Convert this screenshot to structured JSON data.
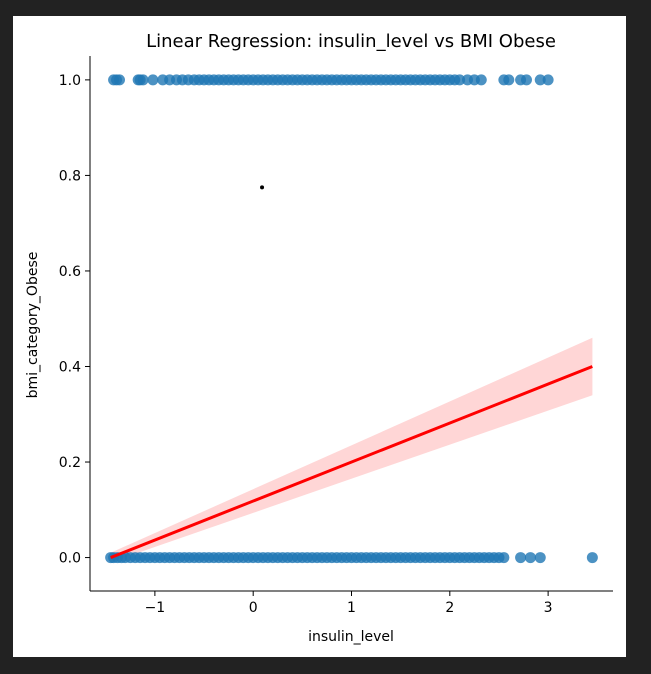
{
  "chart_data": {
    "type": "scatter",
    "title": "Linear Regression: insulin_level vs BMI Obese",
    "xlabel": "insulin_level",
    "ylabel": "bmi_category_Obese",
    "xlim": [
      -1.66,
      3.66
    ],
    "ylim": [
      -0.07,
      1.05
    ],
    "xticks": [
      -1,
      0,
      1,
      2,
      3
    ],
    "xtick_labels": [
      "−1",
      "0",
      "1",
      "2",
      "3"
    ],
    "yticks": [
      0.0,
      0.2,
      0.4,
      0.6,
      0.8,
      1.0
    ],
    "ytick_labels": [
      "0.0",
      "0.2",
      "0.4",
      "0.6",
      "0.8",
      "1.0"
    ],
    "grid": false,
    "point_color": "#1f77b4",
    "line_color": "#ff0000",
    "ci_color": "#ffcccc",
    "series": [
      {
        "values_at_y1": [
          -1.42,
          -1.39,
          -1.36,
          -1.17,
          -1.15,
          -1.12,
          -1.02,
          -0.92,
          -0.85,
          -0.78,
          -0.72,
          -0.66,
          -0.6,
          -0.55,
          -0.5,
          -0.45,
          -0.4,
          -0.35,
          -0.3,
          -0.25,
          -0.2,
          -0.15,
          -0.1,
          -0.05,
          0.0,
          0.05,
          0.1,
          0.15,
          0.2,
          0.25,
          0.3,
          0.35,
          0.4,
          0.45,
          0.5,
          0.55,
          0.6,
          0.65,
          0.7,
          0.75,
          0.8,
          0.85,
          0.9,
          0.95,
          1.0,
          1.05,
          1.1,
          1.15,
          1.2,
          1.25,
          1.3,
          1.35,
          1.4,
          1.45,
          1.5,
          1.55,
          1.6,
          1.65,
          1.7,
          1.75,
          1.8,
          1.85,
          1.9,
          1.95,
          2.0,
          2.05,
          2.1,
          2.18,
          2.25,
          2.32,
          2.55,
          2.6,
          2.72,
          2.78,
          2.92,
          3.0
        ],
        "values_at_y0": [
          -1.45,
          -1.42,
          -1.38,
          -1.34,
          -1.3,
          -1.25,
          -1.2,
          -1.15,
          -1.1,
          -1.05,
          -1.0,
          -0.95,
          -0.9,
          -0.85,
          -0.8,
          -0.75,
          -0.7,
          -0.65,
          -0.6,
          -0.55,
          -0.5,
          -0.45,
          -0.4,
          -0.35,
          -0.3,
          -0.25,
          -0.2,
          -0.15,
          -0.1,
          -0.05,
          0.0,
          0.05,
          0.1,
          0.15,
          0.2,
          0.25,
          0.3,
          0.35,
          0.4,
          0.45,
          0.5,
          0.55,
          0.6,
          0.65,
          0.7,
          0.75,
          0.8,
          0.85,
          0.9,
          0.95,
          1.0,
          1.05,
          1.1,
          1.15,
          1.2,
          1.25,
          1.3,
          1.35,
          1.4,
          1.45,
          1.5,
          1.55,
          1.6,
          1.65,
          1.7,
          1.75,
          1.8,
          1.85,
          1.9,
          1.95,
          2.0,
          2.05,
          2.1,
          2.15,
          2.2,
          2.25,
          2.3,
          2.35,
          2.4,
          2.45,
          2.5,
          2.55,
          2.72,
          2.82,
          2.92,
          3.45
        ]
      }
    ],
    "regression": {
      "x_start": -1.45,
      "x_end": 3.45,
      "y_start": 0.0,
      "y_end": 0.4,
      "ci_halfwidth_start": 0.01,
      "ci_halfwidth_end": 0.06
    },
    "annotation_point": {
      "x": 0.09,
      "y": 0.775,
      "color": "#000000"
    }
  }
}
